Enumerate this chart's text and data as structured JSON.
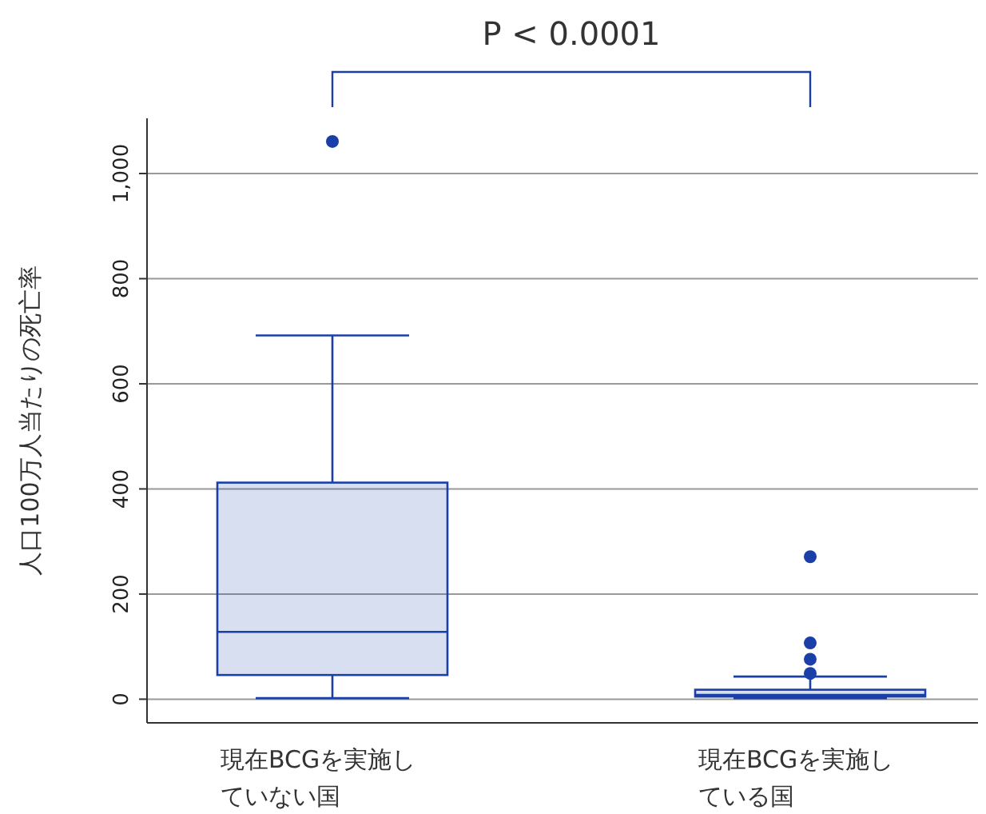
{
  "chart_data": {
    "type": "box",
    "ylabel": "人口100万人当たりの死亡率",
    "categories": [
      "現在BCGを実施していない国",
      "現在BCGを実施している国"
    ],
    "boxes": [
      {
        "low": 2,
        "q1": 46,
        "median": 128,
        "q3": 412,
        "high": 692,
        "outliers": [
          1061
        ]
      },
      {
        "low": 2,
        "q1": 5,
        "median": 8,
        "q3": 18,
        "high": 43,
        "outliers": [
          271,
          107,
          76,
          49
        ]
      }
    ],
    "color": "#1a3fa8",
    "ylim": [
      -45,
      1105
    ],
    "yticks": [
      0,
      200,
      400,
      600,
      800,
      {
        "value": 1000,
        "label": "1,000"
      }
    ],
    "grid": "y",
    "annotations": [
      "P < 0.0001"
    ]
  }
}
